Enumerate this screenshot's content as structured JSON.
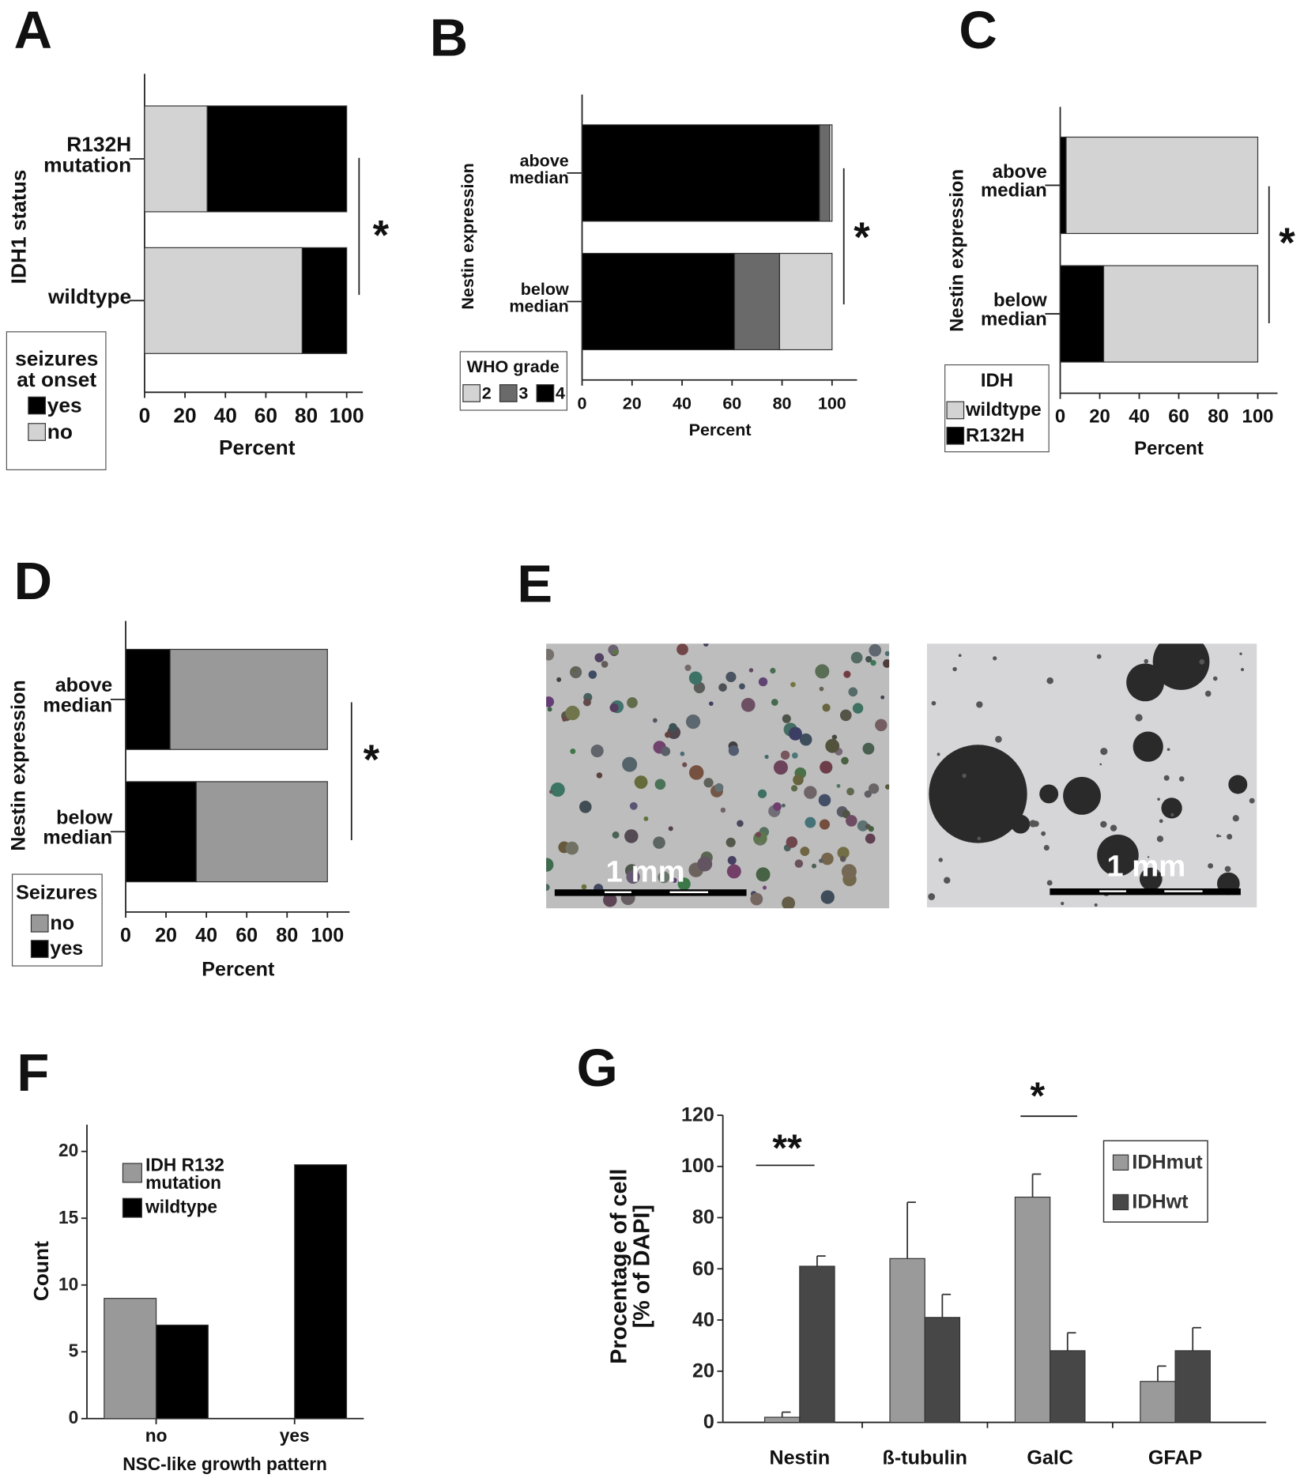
{
  "chart_data": [
    {
      "type": "stacked-hbar",
      "label": "A",
      "y_label": "IDH1 status",
      "x_label": "Percent",
      "categories": [
        "R132H\nmutation",
        "wildtype"
      ],
      "series": [
        {
          "name": "yes",
          "color": "#000000",
          "values": [
            69,
            22
          ]
        },
        {
          "name": "no",
          "color": "#d3d3d3",
          "values": [
            31,
            78
          ]
        }
      ],
      "legend_title": "seizures\nat onset",
      "xlim": [
        0,
        108
      ],
      "xticks": [
        0,
        20,
        40,
        60,
        80,
        100
      ],
      "annotation": "*"
    },
    {
      "type": "stacked-hbar",
      "label": "B",
      "y_label": "Nestin expression",
      "x_label": "Percent",
      "categories": [
        "above\nmedian",
        "below\nmedian"
      ],
      "series": [
        {
          "name": "2",
          "color": "#d3d3d3",
          "values": [
            1,
            21
          ]
        },
        {
          "name": "3",
          "color": "#6a6a6a",
          "values": [
            4,
            18
          ]
        },
        {
          "name": "4",
          "color": "#000000",
          "values": [
            95,
            61
          ]
        }
      ],
      "legend_title": "WHO grade",
      "xlim": [
        0,
        110
      ],
      "xticks": [
        0,
        20,
        40,
        60,
        80,
        100
      ],
      "annotation": "*"
    },
    {
      "type": "stacked-hbar",
      "label": "C",
      "y_label": "Nestin expression",
      "x_label": "Percent",
      "categories": [
        "above\nmedian",
        "below\nmedian"
      ],
      "series": [
        {
          "name": "wildtype",
          "color": "#d3d3d3",
          "values": [
            97,
            78
          ]
        },
        {
          "name": "R132H",
          "color": "#000000",
          "values": [
            3,
            22
          ]
        }
      ],
      "legend_title": "IDH",
      "xlim": [
        0,
        110
      ],
      "xticks": [
        0,
        20,
        40,
        60,
        80,
        100
      ],
      "annotation": "*"
    },
    {
      "type": "stacked-hbar",
      "label": "D",
      "y_label": "Nestin expression",
      "x_label": "Percent",
      "categories": [
        "above\nmedian",
        "below\nmedian"
      ],
      "series": [
        {
          "name": "no",
          "color": "#999999",
          "values": [
            78,
            65
          ]
        },
        {
          "name": "yes",
          "color": "#000000",
          "values": [
            22,
            35
          ]
        }
      ],
      "legend_title": "Seizures",
      "xlim": [
        0,
        111
      ],
      "xticks": [
        0,
        20,
        40,
        60,
        80,
        100
      ],
      "annotation": "*"
    },
    {
      "type": "grouped-bar",
      "label": "F",
      "y_label": "Count",
      "x_label": "NSC-like growth pattern",
      "categories": [
        "no",
        "yes"
      ],
      "series": [
        {
          "name": "IDH R132\nmutation",
          "color": "#999999",
          "values": [
            9,
            0
          ]
        },
        {
          "name": "wildtype",
          "color": "#000000",
          "values": [
            7,
            19
          ]
        }
      ],
      "ylim": [
        0,
        22
      ],
      "yticks": [
        0,
        5,
        10,
        15,
        20
      ]
    },
    {
      "type": "grouped-bar",
      "label": "G",
      "y_label": "Procentage of cell\n[% of DAPI]",
      "categories": [
        "Nestin",
        "ß-tubulin",
        "GalC",
        "GFAP"
      ],
      "series": [
        {
          "name": "IDHmut",
          "color": "#9a9a9a",
          "values": [
            2,
            64,
            88,
            16
          ],
          "errors": [
            2,
            22,
            9,
            6
          ]
        },
        {
          "name": "IDHwt",
          "color": "#474747",
          "values": [
            61,
            41,
            28,
            28
          ],
          "errors": [
            4,
            9,
            7,
            9
          ]
        }
      ],
      "ylim": [
        0,
        120
      ],
      "yticks": [
        0,
        20,
        40,
        60,
        80,
        100,
        120
      ],
      "annotations": [
        "**",
        "*"
      ]
    }
  ],
  "images": {
    "label": "E",
    "scale_labels": [
      "1 mm",
      "1 mm"
    ]
  }
}
